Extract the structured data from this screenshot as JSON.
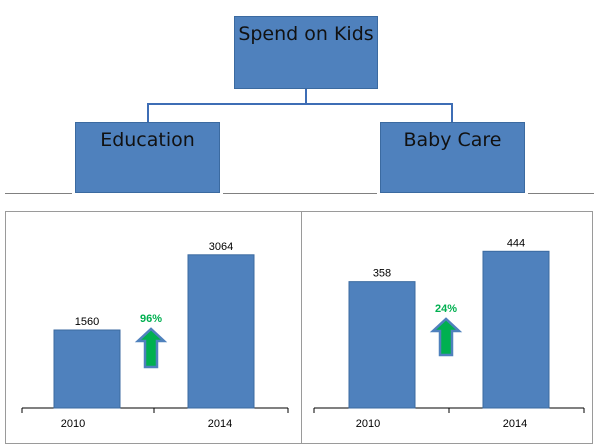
{
  "org": {
    "root": {
      "label": "Spend on Kids"
    },
    "children": [
      {
        "label": "Education"
      },
      {
        "label": "Baby Care"
      }
    ],
    "box_color": "#4f81bd",
    "line_color": "#3e6db5"
  },
  "chart_data": [
    {
      "type": "bar",
      "categories": [
        "2010",
        "2014"
      ],
      "values": [
        1560,
        3064
      ],
      "data_labels": [
        "1560",
        "3064"
      ],
      "growth_label": "96%",
      "growth_icon": "up-arrow-icon",
      "ylim": [
        0,
        3500
      ],
      "bar_color": "#4f81bd",
      "grid": false
    },
    {
      "type": "bar",
      "categories": [
        "2010",
        "2014"
      ],
      "values": [
        358,
        444
      ],
      "data_labels": [
        "358",
        "444"
      ],
      "growth_label": "24%",
      "growth_icon": "up-arrow-icon",
      "ylim": [
        0,
        510
      ],
      "bar_color": "#4f81bd",
      "grid": false
    }
  ]
}
